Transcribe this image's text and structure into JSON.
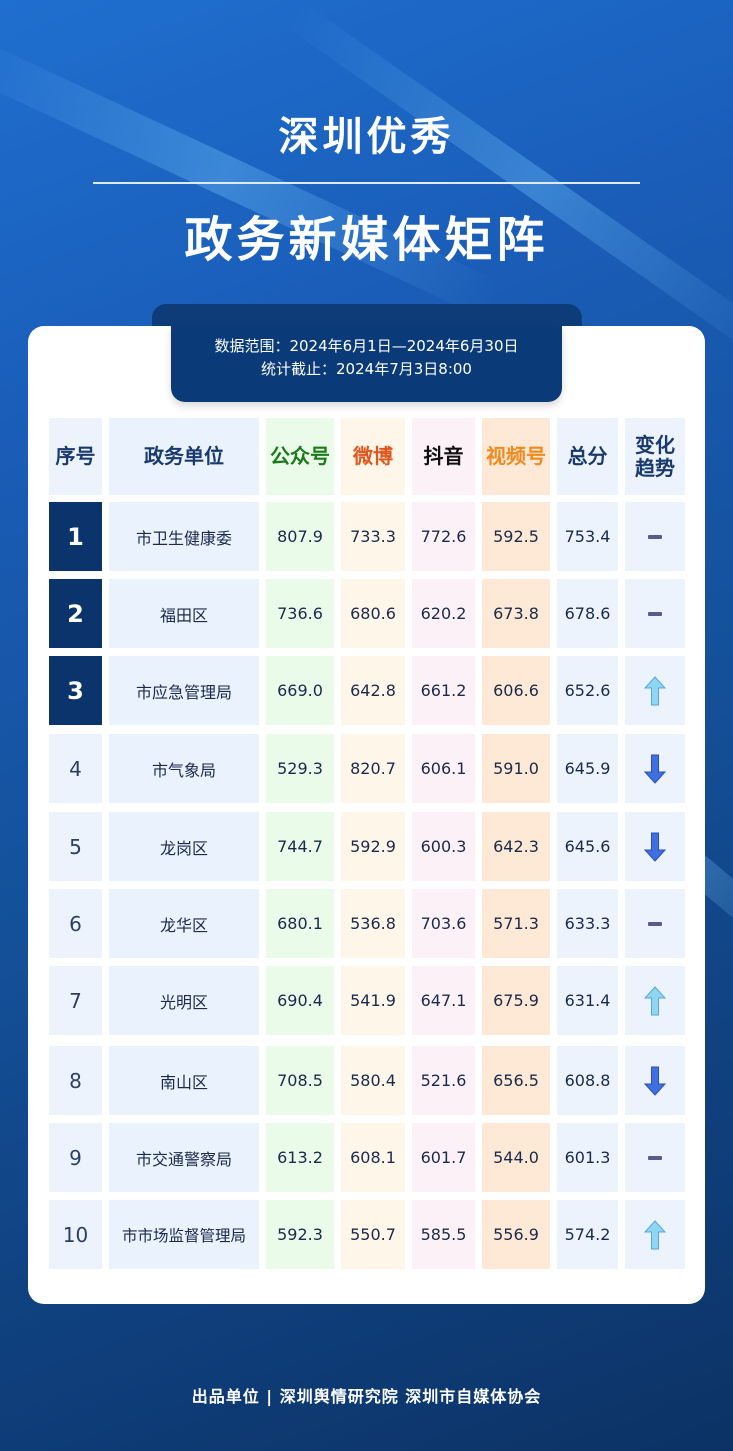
{
  "header": {
    "title_line1": "深圳优秀",
    "title_line2": "政务新媒体矩阵"
  },
  "info": {
    "range": "数据范围：2024年6月1日—2024年6月30日",
    "cutoff": "统计截止：2024年7月3日8:00"
  },
  "table": {
    "columns": [
      {
        "label": "序号",
        "color": "#1a3a6e"
      },
      {
        "label": "政务单位",
        "color": "#1a3a6e"
      },
      {
        "label": "公众号",
        "color": "#1b7a1b"
      },
      {
        "label": "微博",
        "color": "#e0561c"
      },
      {
        "label": "抖音",
        "color": "#111111"
      },
      {
        "label": "视频号",
        "color": "#f08a1e"
      },
      {
        "label": "总分",
        "color": "#1a3a6e"
      },
      {
        "label": "变化趋势",
        "color": "#1a3a6e"
      }
    ],
    "rows": [
      {
        "rank": "1",
        "unit": "市卫生健康委",
        "gzh": "807.9",
        "weibo": "733.3",
        "douyin": "772.6",
        "sph": "592.5",
        "total": "753.4",
        "trend": "flat"
      },
      {
        "rank": "2",
        "unit": "福田区",
        "gzh": "736.6",
        "weibo": "680.6",
        "douyin": "620.2",
        "sph": "673.8",
        "total": "678.6",
        "trend": "flat"
      },
      {
        "rank": "3",
        "unit": "市应急管理局",
        "gzh": "669.0",
        "weibo": "642.8",
        "douyin": "661.2",
        "sph": "606.6",
        "total": "652.6",
        "trend": "up"
      },
      {
        "rank": "4",
        "unit": "市气象局",
        "gzh": "529.3",
        "weibo": "820.7",
        "douyin": "606.1",
        "sph": "591.0",
        "total": "645.9",
        "trend": "down"
      },
      {
        "rank": "5",
        "unit": "龙岗区",
        "gzh": "744.7",
        "weibo": "592.9",
        "douyin": "600.3",
        "sph": "642.3",
        "total": "645.6",
        "trend": "down"
      },
      {
        "rank": "6",
        "unit": "龙华区",
        "gzh": "680.1",
        "weibo": "536.8",
        "douyin": "703.6",
        "sph": "571.3",
        "total": "633.3",
        "trend": "flat"
      },
      {
        "rank": "7",
        "unit": "光明区",
        "gzh": "690.4",
        "weibo": "541.9",
        "douyin": "647.1",
        "sph": "675.9",
        "total": "631.4",
        "trend": "up"
      },
      {
        "rank": "8",
        "unit": "南山区",
        "gzh": "708.5",
        "weibo": "580.4",
        "douyin": "521.6",
        "sph": "656.5",
        "total": "608.8",
        "trend": "down"
      },
      {
        "rank": "9",
        "unit": "市交通警察局",
        "gzh": "613.2",
        "weibo": "608.1",
        "douyin": "601.7",
        "sph": "544.0",
        "total": "601.3",
        "trend": "flat"
      },
      {
        "rank": "10",
        "unit": "市市场监督管理局",
        "gzh": "592.3",
        "weibo": "550.7",
        "douyin": "585.5",
        "sph": "556.9",
        "total": "574.2",
        "trend": "up"
      }
    ]
  },
  "footer": {
    "text": "出品单位 | 深圳舆情研究院 深圳市自媒体协会"
  }
}
